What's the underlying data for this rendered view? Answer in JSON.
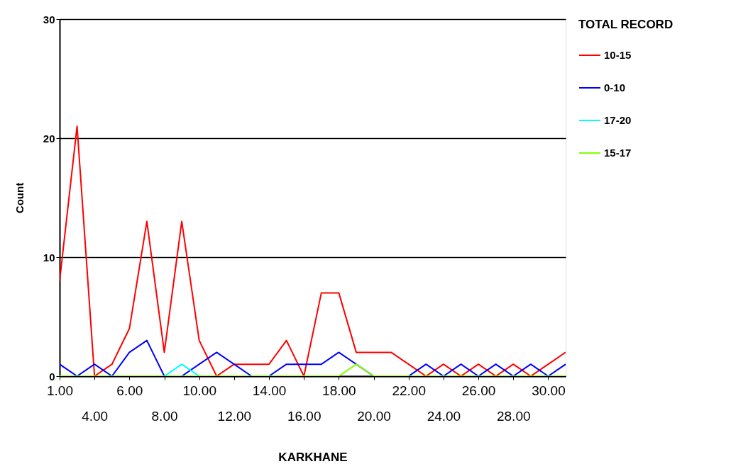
{
  "chart_data": {
    "type": "line",
    "xlabel": "KARKHANE",
    "ylabel": "Count",
    "legend_title": "TOTAL RECORD",
    "categories": [
      "1.00",
      null,
      "4.00",
      null,
      "6.00",
      null,
      "8.00",
      null,
      "10.00",
      null,
      "12.00",
      null,
      "14.00",
      null,
      "16.00",
      null,
      "18.00",
      null,
      "20.00",
      null,
      "22.00",
      null,
      "24.00",
      null,
      "26.00",
      null,
      "28.00",
      null,
      "30.00",
      null
    ],
    "series": [
      {
        "name": "10-15",
        "color": "#ff0000",
        "values": [
          8,
          21,
          0,
          1,
          4,
          13,
          2,
          13,
          3,
          0,
          1,
          1,
          1,
          3,
          0,
          7,
          7,
          2,
          2,
          2,
          1,
          0,
          1,
          0,
          1,
          0,
          1,
          0,
          1,
          2
        ]
      },
      {
        "name": "0-10",
        "color": "#0000ff",
        "values": [
          1,
          0,
          1,
          0,
          2,
          3,
          0,
          0,
          1,
          2,
          1,
          0,
          0,
          1,
          1,
          1,
          2,
          1,
          0,
          0,
          0,
          1,
          0,
          1,
          0,
          1,
          0,
          1,
          0,
          1
        ]
      },
      {
        "name": "17-20",
        "color": "#00ffff",
        "values": [
          null,
          null,
          null,
          null,
          null,
          null,
          0,
          1,
          0,
          null,
          null,
          null,
          null,
          null,
          null,
          null,
          null,
          null,
          null,
          null,
          null,
          null,
          null,
          null,
          null,
          null,
          null,
          null,
          null,
          null
        ]
      },
      {
        "name": "15-17",
        "color": "#80ff00",
        "values": [
          0,
          0,
          0,
          0,
          0,
          0,
          0,
          0,
          0,
          0,
          0,
          0,
          0,
          0,
          0,
          0,
          0,
          1,
          0,
          0,
          0,
          0,
          0,
          0,
          0,
          0,
          0,
          0,
          0,
          0
        ]
      }
    ],
    "ylim": [
      0,
      30
    ],
    "yticks": [
      0,
      10,
      20,
      30
    ],
    "grid": "y",
    "legend": "right",
    "line_style": "solid",
    "marker": "none"
  }
}
